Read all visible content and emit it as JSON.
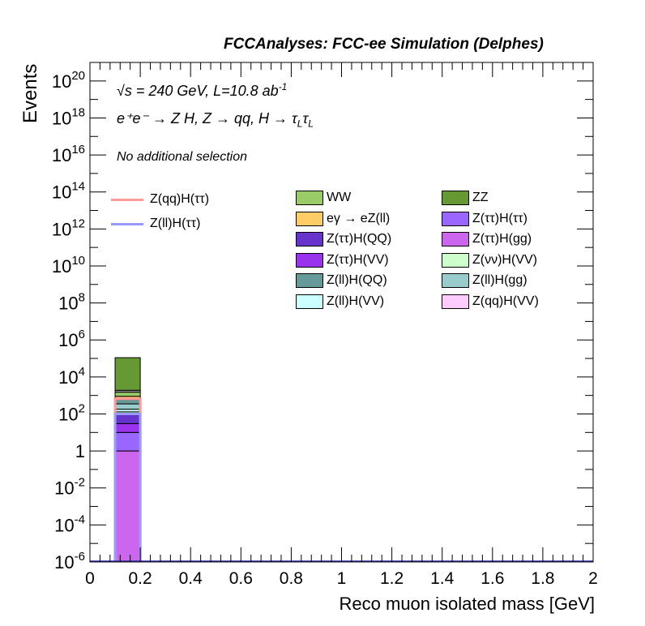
{
  "header": {
    "title": "FCCAnalyses: FCC-ee Simulation (Delphes)"
  },
  "annotations": {
    "line1": "√s = 240 GeV, L=10.8 ab",
    "line1_sup": "-1",
    "line2": "e⁺e⁻ → Z H, Z → qq, H → τ",
    "line2_sub1": "L",
    "line2_tau2": "τ",
    "line2_sub2": "L",
    "selection": "No additional selection"
  },
  "chart_data": {
    "type": "bar",
    "xlabel": "Reco muon isolated mass [GeV]",
    "ylabel": "Events",
    "xlim": [
      0,
      2
    ],
    "ylim": [
      1e-06,
      1e+21
    ],
    "yscale": "log",
    "x_ticks": [
      "0",
      "0.2",
      "0.4",
      "0.6",
      "0.8",
      "1",
      "1.2",
      "1.4",
      "1.6",
      "1.8",
      "2"
    ],
    "y_ticks": [
      {
        "base": "10",
        "exp": "20"
      },
      {
        "base": "10",
        "exp": "18"
      },
      {
        "base": "10",
        "exp": "16"
      },
      {
        "base": "10",
        "exp": "14"
      },
      {
        "base": "10",
        "exp": "12"
      },
      {
        "base": "10",
        "exp": "10"
      },
      {
        "base": "10",
        "exp": "8"
      },
      {
        "base": "10",
        "exp": "6"
      },
      {
        "base": "10",
        "exp": "4"
      },
      {
        "base": "10",
        "exp": "2"
      },
      {
        "base": "1",
        "exp": ""
      },
      {
        "base": "10",
        "exp": "-2"
      },
      {
        "base": "10",
        "exp": "-4"
      },
      {
        "base": "10",
        "exp": "-6"
      }
    ],
    "bin": [
      0.1,
      0.2
    ],
    "stack": [
      {
        "name": "Z(ττ)H(gg)",
        "color": "#cc66ee",
        "top": 1
      },
      {
        "name": "Z(ττ)H(ττ)",
        "color": "#9966ff",
        "top": 10
      },
      {
        "name": "Z(ττ)H(VV)",
        "color": "#9933ee",
        "top": 30
      },
      {
        "name": "Z(ττ)H(QQ)",
        "color": "#6633cc",
        "top": 90
      },
      {
        "name": "Z(qq)H(VV)",
        "color": "#ffccff",
        "top": 110
      },
      {
        "name": "Z(νν)H(VV)",
        "color": "#ccffcc",
        "top": 130
      },
      {
        "name": "Z(ll)H(VV)",
        "color": "#ccffff",
        "top": 180
      },
      {
        "name": "Z(ll)H(gg)",
        "color": "#99cccc",
        "top": 350
      },
      {
        "name": "Z(ll)H(QQ)",
        "color": "#669999",
        "top": 600
      },
      {
        "name": "eγ → eZ(ll)",
        "color": "#ffcc66",
        "top": 900
      },
      {
        "name": "WW",
        "color": "#99cc66",
        "top": 1500
      },
      {
        "name": "Z(ll)H(ττ)",
        "color": "#999999",
        "top": 1900
      },
      {
        "name": "ZZ",
        "color": "#669933",
        "top": 110000
      }
    ],
    "signal_lines": [
      {
        "name": "Z(qq)H(ττ)",
        "color": "#ff9999",
        "value": 650
      },
      {
        "name": "Z(ll)H(ττ)",
        "color": "#9999ff",
        "value": 100
      }
    ],
    "legend_lines": [
      {
        "label": "Z(qq)H(ττ)",
        "color": "#ff9999"
      },
      {
        "label": "Z(ll)H(ττ)",
        "color": "#9999ff"
      }
    ],
    "legend_boxes": [
      {
        "label": "WW",
        "color": "#99cc66"
      },
      {
        "label": "ZZ",
        "color": "#669933"
      },
      {
        "label": "eγ → eZ(ll)",
        "color": "#ffcc66"
      },
      {
        "label": "Z(ττ)H(ττ)",
        "color": "#9966ff"
      },
      {
        "label": "Z(ττ)H(QQ)",
        "color": "#6633cc"
      },
      {
        "label": "Z(ττ)H(gg)",
        "color": "#cc66ee"
      },
      {
        "label": "Z(ττ)H(VV)",
        "color": "#9933ee"
      },
      {
        "label": "Z(νν)H(VV)",
        "color": "#ccffcc"
      },
      {
        "label": "Z(ll)H(QQ)",
        "color": "#669999"
      },
      {
        "label": "Z(ll)H(gg)",
        "color": "#99cccc"
      },
      {
        "label": "Z(ll)H(VV)",
        "color": "#ccffff"
      },
      {
        "label": "Z(qq)H(VV)",
        "color": "#ffccff"
      }
    ],
    "legend_position": "top-right",
    "grid": false
  }
}
